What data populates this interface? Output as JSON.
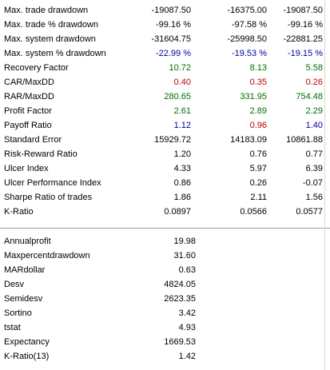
{
  "colors": {
    "black": "#000000",
    "blue": "#0000a0",
    "green": "#007000",
    "red": "#c00000",
    "separator": "#9a9a9a"
  },
  "stats": [
    {
      "label": "Max. trade drawdown",
      "values": [
        "-19087.50",
        "-16375.00",
        "-19087.50"
      ],
      "colors": [
        "black",
        "black",
        "black"
      ]
    },
    {
      "label": "Max. trade % drawdown",
      "values": [
        "-99.16 %",
        "-97.58 %",
        "-99.16 %"
      ],
      "colors": [
        "black",
        "black",
        "black"
      ]
    },
    {
      "label": "Max. system drawdown",
      "values": [
        "-31604.75",
        "-25998.50",
        "-22881.25"
      ],
      "colors": [
        "black",
        "black",
        "black"
      ]
    },
    {
      "label": "Max. system % drawdown",
      "values": [
        "-22.99 %",
        "-19.53 %",
        "-19.15 %"
      ],
      "colors": [
        "blue",
        "blue",
        "blue"
      ]
    },
    {
      "label": "Recovery Factor",
      "values": [
        "10.72",
        "8.13",
        "5.58"
      ],
      "colors": [
        "green",
        "green",
        "green"
      ]
    },
    {
      "label": "CAR/MaxDD",
      "values": [
        "0.40",
        "0.35",
        "0.26"
      ],
      "colors": [
        "red",
        "red",
        "red"
      ]
    },
    {
      "label": "RAR/MaxDD",
      "values": [
        "280.65",
        "331.95",
        "754.48"
      ],
      "colors": [
        "green",
        "green",
        "green"
      ]
    },
    {
      "label": "Profit Factor",
      "values": [
        "2.61",
        "2.89",
        "2.29"
      ],
      "colors": [
        "green",
        "green",
        "green"
      ]
    },
    {
      "label": "Payoff Ratio",
      "values": [
        "1.12",
        "0.96",
        "1.40"
      ],
      "colors": [
        "blue",
        "red",
        "blue"
      ]
    },
    {
      "label": "Standard Error",
      "values": [
        "15929.72",
        "14183.09",
        "10861.88"
      ],
      "colors": [
        "black",
        "black",
        "black"
      ]
    },
    {
      "label": "Risk-Reward Ratio",
      "values": [
        "1.20",
        "0.76",
        "0.77"
      ],
      "colors": [
        "black",
        "black",
        "black"
      ]
    },
    {
      "label": "Ulcer Index",
      "values": [
        "4.33",
        "5.97",
        "6.39"
      ],
      "colors": [
        "black",
        "black",
        "black"
      ]
    },
    {
      "label": "Ulcer Performance Index",
      "values": [
        "0.86",
        "0.26",
        "-0.07"
      ],
      "colors": [
        "black",
        "black",
        "black"
      ]
    },
    {
      "label": "Sharpe Ratio of trades",
      "values": [
        "1.86",
        "2.11",
        "1.56"
      ],
      "colors": [
        "black",
        "black",
        "black"
      ]
    },
    {
      "label": "K-Ratio",
      "values": [
        "0.0897",
        "0.0566",
        "0.0577"
      ],
      "colors": [
        "black",
        "black",
        "black"
      ]
    }
  ],
  "custom_metrics": [
    {
      "label": "Annualprofit",
      "value": "19.98"
    },
    {
      "label": "Maxpercentdrawdown",
      "value": "31.60"
    },
    {
      "label": "MARdollar",
      "value": "0.63"
    },
    {
      "label": "Desv",
      "value": "4824.05"
    },
    {
      "label": "Semidesv",
      "value": "2623.35"
    },
    {
      "label": "Sortino",
      "value": "3.42"
    },
    {
      "label": "tstat",
      "value": "4.93"
    },
    {
      "label": "Expectancy",
      "value": "1669.53"
    },
    {
      "label": "K-Ratio(13)",
      "value": "1.42"
    }
  ]
}
